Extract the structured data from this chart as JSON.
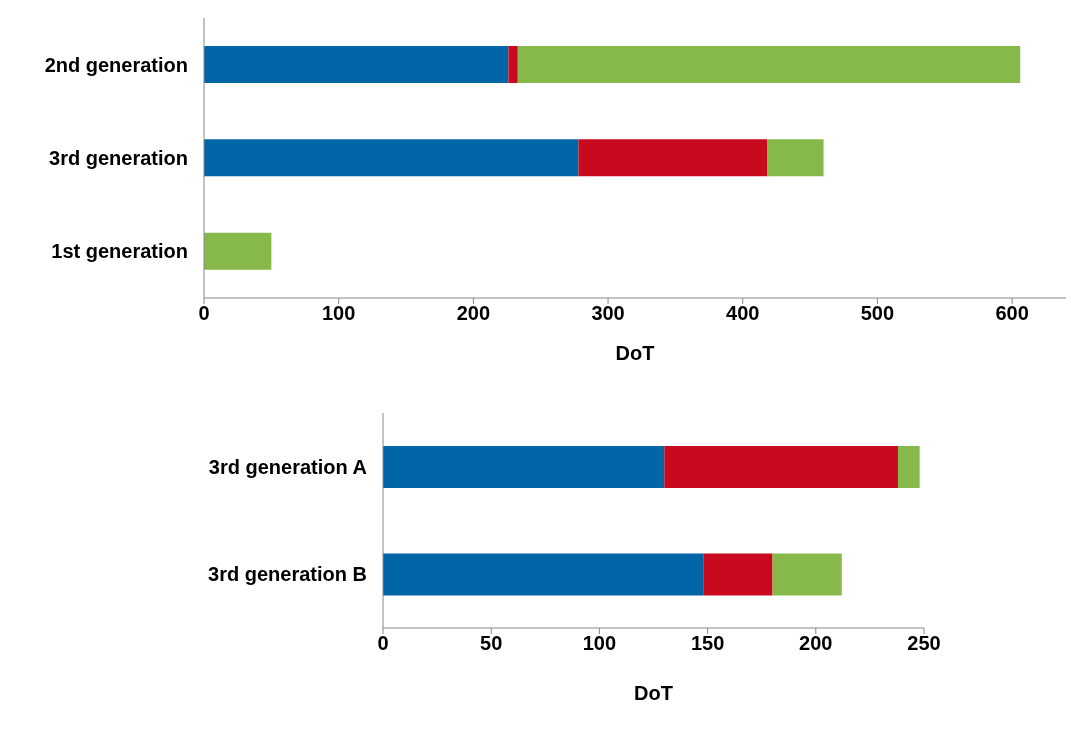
{
  "chart_data": [
    {
      "type": "bar",
      "orientation": "horizontal",
      "stacked": true,
      "categories": [
        "2nd generation",
        "3rd generation",
        "1st generation"
      ],
      "xlabel": "DoT",
      "xlim": [
        0,
        640
      ],
      "xticks": [
        0,
        100,
        200,
        300,
        400,
        500,
        600
      ],
      "grid": false,
      "legend": false,
      "series": [
        {
          "color": "#0066a8",
          "values": [
            226,
            278,
            0
          ]
        },
        {
          "color": "#c8091e",
          "values": [
            7,
            140,
            0
          ]
        },
        {
          "color": "#86b94a",
          "values": [
            373,
            42,
            50
          ]
        }
      ]
    },
    {
      "type": "bar",
      "orientation": "horizontal",
      "stacked": true,
      "categories": [
        "3rd generation A",
        "3rd generation B"
      ],
      "xlabel": "DoT",
      "xlim": [
        0,
        250
      ],
      "xticks": [
        0,
        50,
        100,
        150,
        200,
        250
      ],
      "grid": false,
      "legend": false,
      "series": [
        {
          "color": "#0066a8",
          "values": [
            130,
            148
          ]
        },
        {
          "color": "#c8091e",
          "values": [
            108,
            32
          ]
        },
        {
          "color": "#86b94a",
          "values": [
            10,
            32
          ]
        }
      ]
    }
  ]
}
